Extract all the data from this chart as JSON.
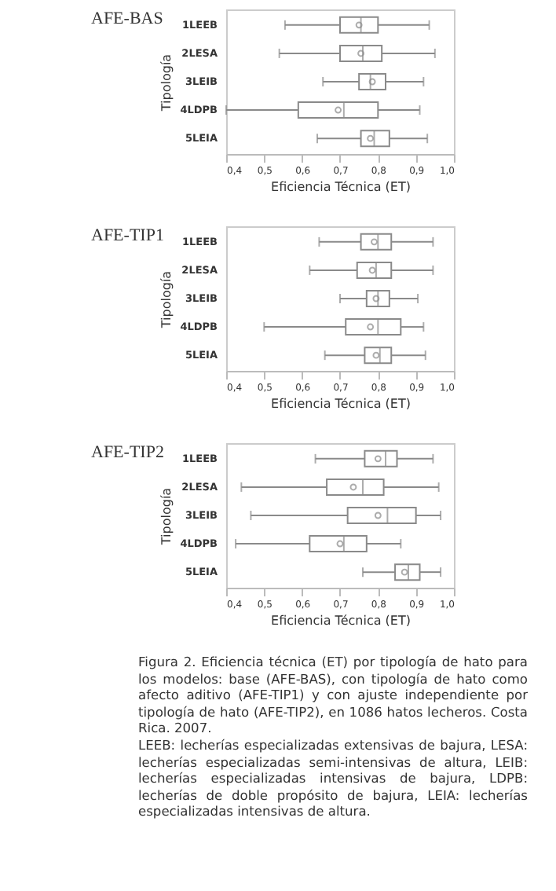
{
  "chart_data": [
    {
      "type": "box",
      "title": "AFE-BAS",
      "orientation": "horizontal",
      "xlabel": "Eficiencia Técnica (ET)",
      "ylabel": "Tipología",
      "categories": [
        "1LEEB",
        "2LESA",
        "3LEIB",
        "4LDPB",
        "5LEIA"
      ],
      "boxes": [
        {
          "low": 0.555,
          "q1": 0.7,
          "median": 0.755,
          "q3": 0.8,
          "high": 0.935,
          "mean": 0.75
        },
        {
          "low": 0.54,
          "q1": 0.7,
          "median": 0.76,
          "q3": 0.81,
          "high": 0.95,
          "mean": 0.755
        },
        {
          "low": 0.655,
          "q1": 0.75,
          "median": 0.78,
          "q3": 0.82,
          "high": 0.92,
          "mean": 0.785
        },
        {
          "low": 0.4,
          "q1": 0.59,
          "median": 0.71,
          "q3": 0.8,
          "high": 0.91,
          "mean": 0.695
        },
        {
          "low": 0.64,
          "q1": 0.755,
          "median": 0.79,
          "q3": 0.83,
          "high": 0.93,
          "mean": 0.78
        }
      ],
      "xlim": [
        0.4,
        1.0
      ],
      "xticks": [
        {
          "value": 0.4,
          "label": "0,4"
        },
        {
          "value": 0.5,
          "label": "0,5"
        },
        {
          "value": 0.6,
          "label": "0,6"
        },
        {
          "value": 0.7,
          "label": "0,7"
        },
        {
          "value": 0.8,
          "label": "0,8"
        },
        {
          "value": 0.9,
          "label": "0,9"
        },
        {
          "value": 1.0,
          "label": "1,0"
        }
      ]
    },
    {
      "type": "box",
      "title": "AFE-TIP1",
      "orientation": "horizontal",
      "xlabel": "Eficiencia Técnica (ET)",
      "ylabel": "Tipología",
      "categories": [
        "1LEEB",
        "2LESA",
        "3LEIB",
        "4LDPB",
        "5LEIA"
      ],
      "boxes": [
        {
          "low": 0.645,
          "q1": 0.755,
          "median": 0.8,
          "q3": 0.835,
          "high": 0.945,
          "mean": 0.79
        },
        {
          "low": 0.62,
          "q1": 0.745,
          "median": 0.795,
          "q3": 0.835,
          "high": 0.945,
          "mean": 0.785
        },
        {
          "low": 0.7,
          "q1": 0.77,
          "median": 0.8,
          "q3": 0.83,
          "high": 0.905,
          "mean": 0.795
        },
        {
          "low": 0.5,
          "q1": 0.715,
          "median": 0.8,
          "q3": 0.86,
          "high": 0.92,
          "mean": 0.78
        },
        {
          "low": 0.66,
          "q1": 0.765,
          "median": 0.805,
          "q3": 0.835,
          "high": 0.925,
          "mean": 0.795
        }
      ],
      "xlim": [
        0.4,
        1.0
      ],
      "xticks": [
        {
          "value": 0.4,
          "label": "0,4"
        },
        {
          "value": 0.5,
          "label": "0,5"
        },
        {
          "value": 0.6,
          "label": "0,6"
        },
        {
          "value": 0.7,
          "label": "0,7"
        },
        {
          "value": 0.8,
          "label": "0,8"
        },
        {
          "value": 0.9,
          "label": "0,9"
        },
        {
          "value": 1.0,
          "label": "1,0"
        }
      ]
    },
    {
      "type": "box",
      "title": "AFE-TIP2",
      "orientation": "horizontal",
      "xlabel": "Eficiencia Técnica (ET)",
      "ylabel": "Tipología",
      "categories": [
        "1LEEB",
        "2LESA",
        "3LEIB",
        "4LDPB",
        "5LEIA"
      ],
      "boxes": [
        {
          "low": 0.635,
          "q1": 0.765,
          "median": 0.82,
          "q3": 0.85,
          "high": 0.945,
          "mean": 0.8
        },
        {
          "low": 0.44,
          "q1": 0.665,
          "median": 0.76,
          "q3": 0.815,
          "high": 0.96,
          "mean": 0.735
        },
        {
          "low": 0.465,
          "q1": 0.72,
          "median": 0.825,
          "q3": 0.9,
          "high": 0.965,
          "mean": 0.8
        },
        {
          "low": 0.425,
          "q1": 0.62,
          "median": 0.71,
          "q3": 0.77,
          "high": 0.86,
          "mean": 0.7
        },
        {
          "low": 0.76,
          "q1": 0.845,
          "median": 0.88,
          "q3": 0.91,
          "high": 0.965,
          "mean": 0.87
        }
      ],
      "xlim": [
        0.4,
        1.0
      ],
      "xticks": [
        {
          "value": 0.4,
          "label": "0,4"
        },
        {
          "value": 0.5,
          "label": "0,5"
        },
        {
          "value": 0.6,
          "label": "0,6"
        },
        {
          "value": 0.7,
          "label": "0,7"
        },
        {
          "value": 0.8,
          "label": "0,8"
        },
        {
          "value": 0.9,
          "label": "0,9"
        },
        {
          "value": 1.0,
          "label": "1,0"
        }
      ],
      "annotations": [
        "Figura 2. Eficiencia técnica (ET) por tipología de hato para los modelos: base (AFE-BAS), con tipología de hato como afecto aditivo (AFE-TIP1) y con ajuste independiente por tipología de hato (AFE-TIP2), en 1086 hatos lecheros. Costa Rica. 2007.",
        "LEEB: lecherías especializadas extensivas de bajura, LESA: lecherías especializadas semi-intensivas de altura, LEIB: lecherías especializadas intensivas de bajura, LDPB: lecherías de doble propósito de bajura, LEIA: lecherías especializadas intensivas de altura."
      ]
    }
  ]
}
